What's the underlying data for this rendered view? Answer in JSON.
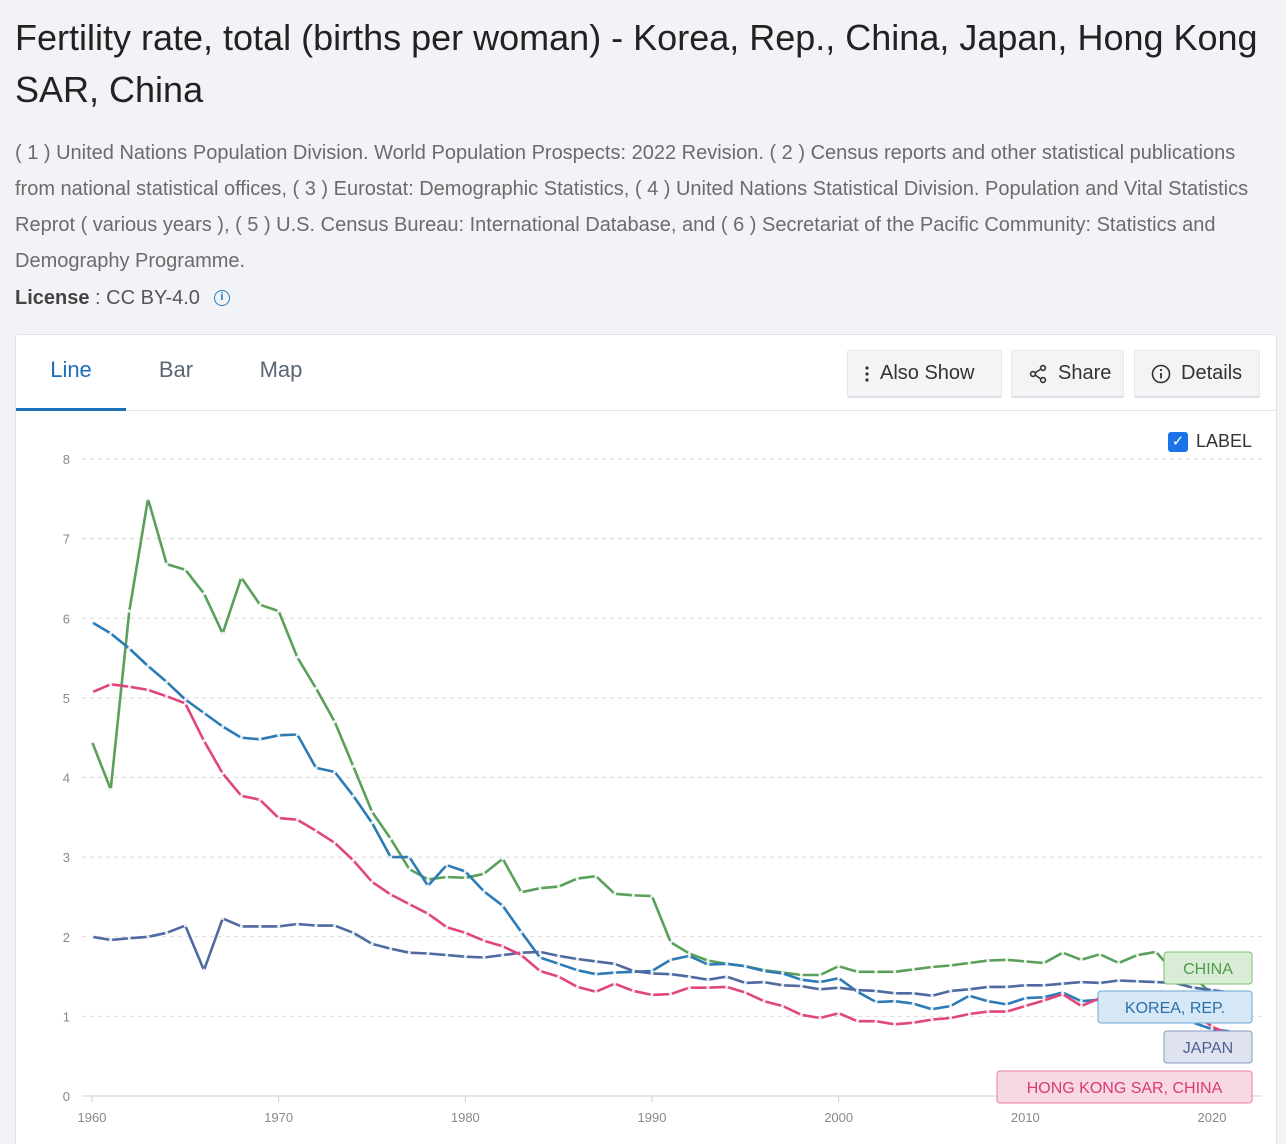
{
  "page": {
    "title": "Fertility rate, total (births per woman) - Korea, Rep., China, Japan, Hong Kong SAR, China",
    "description": "( 1 ) United Nations Population Division. World Population Prospects: 2022 Revision. ( 2 ) Census reports and other statistical publications from national statistical offices, ( 3 ) Eurostat: Demographic Statistics, ( 4 ) United Nations Statistical Division. Population and Vital Statistics Reprot ( various years ), ( 5 ) U.S. Census Bureau: International Database, and ( 6 ) Secretariat of the Pacific Community: Statistics and Demography Programme.",
    "license_label": "License",
    "license_value": " : CC BY-4.0"
  },
  "tabs": [
    {
      "label": "Line",
      "active": true
    },
    {
      "label": "Bar",
      "active": false
    },
    {
      "label": "Map",
      "active": false
    }
  ],
  "buttons": {
    "also_show": "Also Show",
    "share": "Share",
    "details": "Details"
  },
  "label_toggle": {
    "label": "LABEL",
    "checked": true
  },
  "chart_data": {
    "type": "line",
    "title": "",
    "xlabel": "",
    "ylabel": "",
    "xlim": [
      1960,
      2021
    ],
    "ylim": [
      0,
      8
    ],
    "yticks": [
      0,
      1,
      2,
      3,
      4,
      5,
      6,
      7,
      8
    ],
    "xticks": [
      1960,
      1970,
      1980,
      1990,
      2000,
      2010,
      2020
    ],
    "grid": true,
    "x": [
      1960,
      1961,
      1962,
      1963,
      1964,
      1965,
      1966,
      1967,
      1968,
      1969,
      1970,
      1971,
      1972,
      1973,
      1974,
      1975,
      1976,
      1977,
      1978,
      1979,
      1980,
      1981,
      1982,
      1983,
      1984,
      1985,
      1986,
      1987,
      1988,
      1989,
      1990,
      1991,
      1992,
      1993,
      1994,
      1995,
      1996,
      1997,
      1998,
      1999,
      2000,
      2001,
      2002,
      2003,
      2004,
      2005,
      2006,
      2007,
      2008,
      2009,
      2010,
      2011,
      2012,
      2013,
      2014,
      2015,
      2016,
      2017,
      2018,
      2019,
      2020,
      2021
    ],
    "series": [
      {
        "name": "CHINA",
        "color": "#5aa05a",
        "values": [
          4.45,
          3.85,
          6.09,
          7.5,
          6.68,
          6.61,
          6.31,
          5.81,
          6.51,
          6.17,
          6.09,
          5.51,
          5.12,
          4.7,
          4.14,
          3.57,
          3.23,
          2.85,
          2.72,
          2.75,
          2.74,
          2.79,
          2.98,
          2.56,
          2.61,
          2.63,
          2.73,
          2.76,
          2.54,
          2.52,
          2.51,
          1.93,
          1.79,
          1.7,
          1.66,
          1.63,
          1.58,
          1.55,
          1.52,
          1.52,
          1.63,
          1.56,
          1.56,
          1.56,
          1.59,
          1.62,
          1.64,
          1.67,
          1.7,
          1.71,
          1.69,
          1.67,
          1.8,
          1.71,
          1.78,
          1.67,
          1.77,
          1.81,
          1.55,
          1.5,
          1.28,
          1.16
        ]
      },
      {
        "name": "KOREA, REP.",
        "color": "#2c7bb6",
        "values": [
          5.95,
          5.81,
          5.62,
          5.4,
          5.2,
          4.98,
          4.81,
          4.64,
          4.5,
          4.48,
          4.53,
          4.54,
          4.12,
          4.07,
          3.77,
          3.43,
          3.0,
          3.0,
          2.64,
          2.9,
          2.82,
          2.57,
          2.39,
          2.06,
          1.74,
          1.66,
          1.58,
          1.53,
          1.55,
          1.56,
          1.57,
          1.71,
          1.76,
          1.65,
          1.66,
          1.63,
          1.57,
          1.54,
          1.46,
          1.43,
          1.48,
          1.31,
          1.18,
          1.19,
          1.16,
          1.09,
          1.13,
          1.26,
          1.19,
          1.15,
          1.23,
          1.24,
          1.3,
          1.19,
          1.21,
          1.24,
          1.17,
          1.05,
          0.98,
          0.92,
          0.84,
          0.81
        ]
      },
      {
        "name": "JAPAN",
        "color": "#4e6aa0",
        "values": [
          2.0,
          1.96,
          1.98,
          2.0,
          2.05,
          2.14,
          1.58,
          2.23,
          2.13,
          2.13,
          2.13,
          2.16,
          2.14,
          2.14,
          2.05,
          1.91,
          1.85,
          1.8,
          1.79,
          1.77,
          1.75,
          1.74,
          1.77,
          1.8,
          1.81,
          1.76,
          1.72,
          1.69,
          1.66,
          1.57,
          1.54,
          1.53,
          1.5,
          1.46,
          1.5,
          1.42,
          1.43,
          1.39,
          1.38,
          1.34,
          1.36,
          1.33,
          1.32,
          1.29,
          1.29,
          1.26,
          1.32,
          1.34,
          1.37,
          1.37,
          1.39,
          1.39,
          1.41,
          1.43,
          1.42,
          1.45,
          1.44,
          1.43,
          1.42,
          1.36,
          1.33,
          1.3
        ]
      },
      {
        "name": "HONG KONG SAR, CHINA",
        "color": "#e0457b",
        "values": [
          5.07,
          5.17,
          5.14,
          5.1,
          5.02,
          4.93,
          4.46,
          4.05,
          3.77,
          3.72,
          3.49,
          3.47,
          3.33,
          3.18,
          2.96,
          2.69,
          2.53,
          2.41,
          2.29,
          2.12,
          2.05,
          1.95,
          1.88,
          1.77,
          1.57,
          1.5,
          1.37,
          1.31,
          1.41,
          1.32,
          1.27,
          1.28,
          1.36,
          1.36,
          1.37,
          1.3,
          1.19,
          1.13,
          1.02,
          0.98,
          1.04,
          0.94,
          0.94,
          0.9,
          0.92,
          0.96,
          0.98,
          1.03,
          1.06,
          1.06,
          1.13,
          1.2,
          1.28,
          1.13,
          1.23,
          1.2,
          1.21,
          1.13,
          1.07,
          1.05,
          0.87,
          0.77
        ]
      }
    ],
    "end_labels": [
      "CHINA",
      "KOREA, REP.",
      "JAPAN",
      "HONG KONG SAR, CHINA"
    ]
  }
}
